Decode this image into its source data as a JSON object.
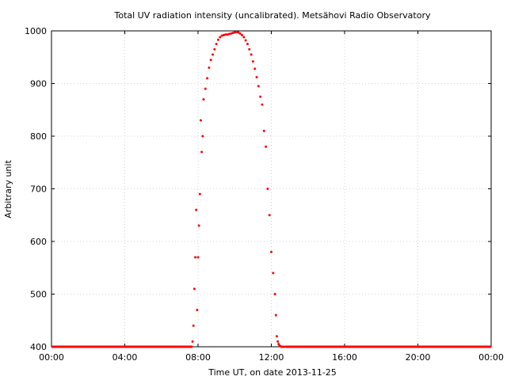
{
  "chart_data": {
    "type": "scatter",
    "title": "Total UV radiation intensity (uncalibrated). Metsähovi Radio Observatory",
    "xlabel": "Time UT, on date 2013-11-25",
    "ylabel": "Arbitrary unit",
    "xlim_hours": [
      0,
      24
    ],
    "ylim": [
      400,
      1000
    ],
    "x_ticks": [
      {
        "hours": 0,
        "label": "00:00"
      },
      {
        "hours": 4,
        "label": "04:00"
      },
      {
        "hours": 8,
        "label": "08:00"
      },
      {
        "hours": 12,
        "label": "12:00"
      },
      {
        "hours": 16,
        "label": "16:00"
      },
      {
        "hours": 20,
        "label": "20:00"
      },
      {
        "hours": 24,
        "label": "00:00"
      }
    ],
    "y_ticks": [
      {
        "value": 400,
        "label": "400"
      },
      {
        "value": 500,
        "label": "500"
      },
      {
        "value": 600,
        "label": "600"
      },
      {
        "value": 700,
        "label": "700"
      },
      {
        "value": 800,
        "label": "800"
      },
      {
        "value": 900,
        "label": "900"
      },
      {
        "value": 1000,
        "label": "1000"
      }
    ],
    "grid": true,
    "marker_color": "#ff0000",
    "series": [
      {
        "x_hours": [
          7.7,
          7.75,
          7.8,
          7.85,
          7.9,
          7.95,
          8.0,
          8.05,
          8.1,
          8.15,
          8.2,
          8.25,
          8.3,
          8.4,
          8.5,
          8.6,
          8.7,
          8.8,
          8.9,
          9.0,
          9.1,
          9.2,
          9.3,
          9.4,
          9.5,
          9.6,
          9.7,
          9.8,
          9.9,
          10.0,
          10.1,
          10.2,
          10.3,
          10.4,
          10.5,
          10.6,
          10.7,
          10.8,
          10.9,
          11.0,
          11.1,
          11.2,
          11.3,
          11.4,
          11.5,
          11.6,
          11.7,
          11.8,
          11.9,
          12.0,
          12.1,
          12.2,
          12.25,
          12.3,
          12.35,
          12.4,
          12.45,
          12.5,
          12.55,
          12.6,
          12.65,
          12.7,
          12.8
        ],
        "y": [
          410,
          440,
          510,
          570,
          660,
          470,
          570,
          630,
          690,
          830,
          770,
          800,
          870,
          890,
          910,
          930,
          945,
          955,
          965,
          975,
          983,
          988,
          991,
          992,
          993,
          993,
          994,
          995,
          996,
          997,
          998,
          997,
          995,
          992,
          988,
          982,
          975,
          965,
          955,
          942,
          928,
          912,
          895,
          875,
          860,
          810,
          780,
          700,
          650,
          580,
          540,
          500,
          460,
          420,
          410,
          405,
          402,
          401,
          400,
          400,
          400,
          400,
          400
        ]
      }
    ]
  }
}
